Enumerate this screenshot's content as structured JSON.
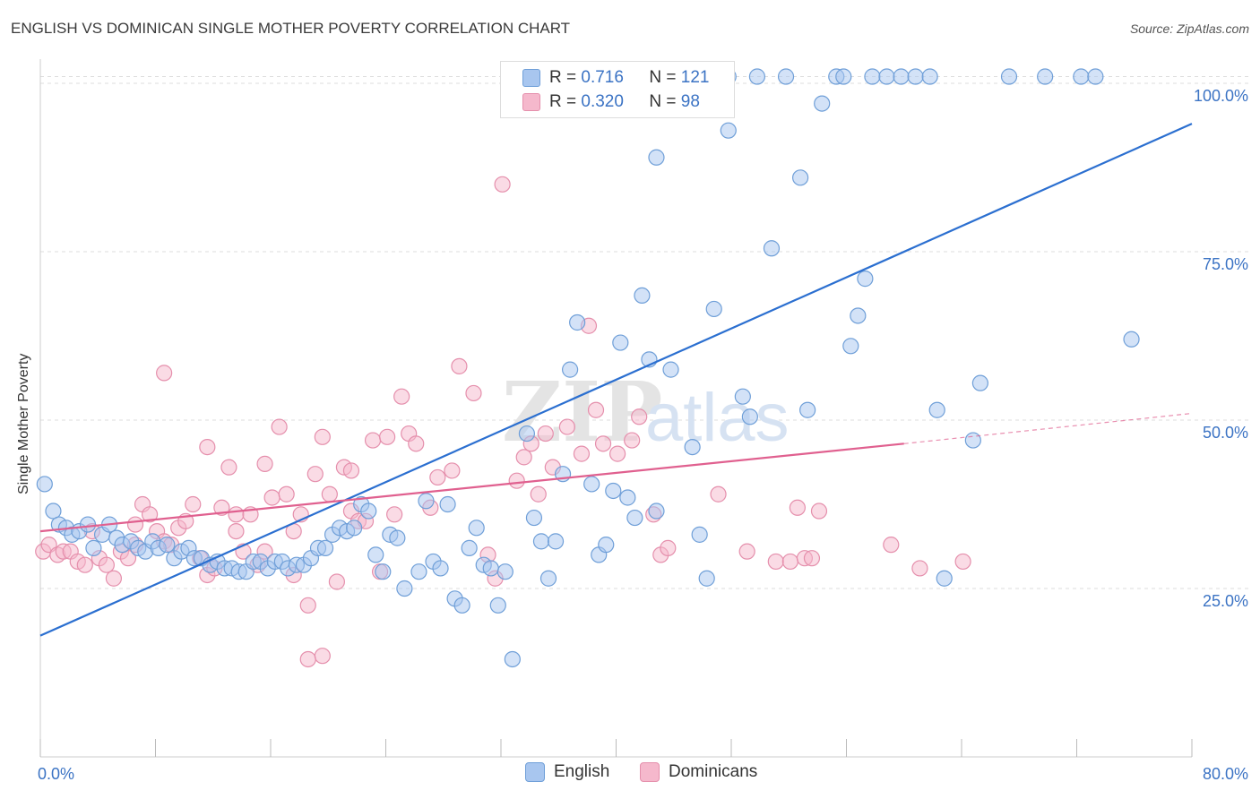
{
  "header": {
    "title": "ENGLISH VS DOMINICAN SINGLE MOTHER POVERTY CORRELATION CHART",
    "source": "Source: ZipAtlas.com"
  },
  "legend_top": {
    "english": {
      "r_label": "R =",
      "r_value": "0.716",
      "n_label": "N =",
      "n_value": "121"
    },
    "dominicans": {
      "r_label": "R =",
      "r_value": "0.320",
      "n_label": "N =",
      "n_value": "98"
    }
  },
  "legend_bottom": {
    "english": "English",
    "dominicans": "Dominicans"
  },
  "colors": {
    "english_fill": "#a8c6ef",
    "english_stroke": "#6f9fd8",
    "english_line": "#2b6fd0",
    "dominicans_fill": "#f5b8cc",
    "dominicans_stroke": "#e58fac",
    "dominicans_line": "#e0608f",
    "grid": "#dddddd",
    "tick_text": "#3b73c4"
  },
  "chart_data": {
    "type": "scatter",
    "title": "ENGLISH VS DOMINICAN SINGLE MOTHER POVERTY CORRELATION CHART",
    "xlabel": "",
    "ylabel": "Single Mother Poverty",
    "xlim": [
      0,
      80
    ],
    "ylim": [
      0,
      102
    ],
    "x_tick_labels": [
      "0.0%",
      "80.0%"
    ],
    "y_ticks": [
      25,
      50,
      75,
      100
    ],
    "y_tick_labels": [
      "25.0%",
      "50.0%",
      "75.0%",
      "100.0%"
    ],
    "grid": true,
    "legend_position": "top-center and bottom",
    "series": [
      {
        "name": "English",
        "r": 0.716,
        "n": 121,
        "trend": {
          "x": [
            0,
            80
          ],
          "y": [
            18,
            94
          ]
        },
        "points": [
          [
            0.3,
            40.5
          ],
          [
            0.9,
            36.5
          ],
          [
            1.3,
            34.5
          ],
          [
            1.8,
            34.0
          ],
          [
            2.2,
            33.0
          ],
          [
            2.7,
            33.5
          ],
          [
            3.3,
            34.5
          ],
          [
            3.7,
            31.0
          ],
          [
            4.3,
            33.0
          ],
          [
            4.8,
            34.5
          ],
          [
            5.3,
            32.5
          ],
          [
            5.7,
            31.5
          ],
          [
            6.3,
            32.0
          ],
          [
            6.8,
            31.0
          ],
          [
            7.3,
            30.5
          ],
          [
            7.8,
            32.0
          ],
          [
            8.2,
            31.0
          ],
          [
            8.8,
            31.5
          ],
          [
            9.3,
            29.5
          ],
          [
            9.8,
            30.5
          ],
          [
            10.3,
            31.0
          ],
          [
            10.7,
            29.5
          ],
          [
            11.2,
            29.5
          ],
          [
            11.8,
            28.5
          ],
          [
            12.3,
            29.0
          ],
          [
            12.8,
            28.0
          ],
          [
            13.3,
            28.0
          ],
          [
            13.8,
            27.5
          ],
          [
            14.3,
            27.5
          ],
          [
            14.8,
            29.0
          ],
          [
            15.3,
            29.0
          ],
          [
            15.8,
            28.0
          ],
          [
            16.3,
            29.0
          ],
          [
            16.8,
            29.0
          ],
          [
            17.2,
            28.0
          ],
          [
            17.8,
            28.5
          ],
          [
            18.3,
            28.5
          ],
          [
            18.8,
            29.5
          ],
          [
            19.3,
            31.0
          ],
          [
            19.8,
            31.0
          ],
          [
            20.3,
            33.0
          ],
          [
            20.8,
            34.0
          ],
          [
            21.3,
            33.5
          ],
          [
            21.8,
            34.0
          ],
          [
            22.3,
            37.5
          ],
          [
            22.8,
            36.5
          ],
          [
            23.3,
            30.0
          ],
          [
            23.8,
            27.5
          ],
          [
            24.3,
            33.0
          ],
          [
            24.8,
            32.5
          ],
          [
            25.3,
            25.0
          ],
          [
            26.3,
            27.5
          ],
          [
            26.8,
            38.0
          ],
          [
            27.3,
            29.0
          ],
          [
            27.8,
            28.0
          ],
          [
            28.3,
            37.5
          ],
          [
            28.8,
            23.5
          ],
          [
            29.3,
            22.5
          ],
          [
            29.8,
            31.0
          ],
          [
            30.3,
            34.0
          ],
          [
            30.8,
            28.5
          ],
          [
            31.3,
            28.0
          ],
          [
            31.8,
            22.5
          ],
          [
            32.3,
            27.5
          ],
          [
            32.8,
            14.5
          ],
          [
            33.8,
            48.0
          ],
          [
            34.3,
            35.5
          ],
          [
            34.8,
            32.0
          ],
          [
            35.3,
            26.5
          ],
          [
            35.8,
            32.0
          ],
          [
            36.3,
            42.0
          ],
          [
            36.8,
            57.5
          ],
          [
            37.3,
            64.5
          ],
          [
            38.3,
            40.5
          ],
          [
            38.8,
            30.0
          ],
          [
            39.3,
            31.5
          ],
          [
            39.8,
            39.5
          ],
          [
            40.3,
            61.5
          ],
          [
            40.8,
            38.5
          ],
          [
            41.3,
            35.5
          ],
          [
            41.8,
            68.5
          ],
          [
            42.3,
            59.0
          ],
          [
            42.8,
            36.5
          ],
          [
            42.8,
            89.0
          ],
          [
            43.8,
            57.5
          ],
          [
            44.3,
            101.0
          ],
          [
            44.8,
            101.0
          ],
          [
            45.3,
            46.0
          ],
          [
            45.8,
            33.0
          ],
          [
            46.3,
            26.5
          ],
          [
            46.8,
            66.5
          ],
          [
            47.3,
            101.0
          ],
          [
            47.8,
            93.0
          ],
          [
            47.8,
            101.0
          ],
          [
            48.8,
            53.5
          ],
          [
            49.3,
            50.5
          ],
          [
            49.8,
            101.0
          ],
          [
            50.8,
            75.5
          ],
          [
            51.8,
            101.0
          ],
          [
            52.8,
            86.0
          ],
          [
            53.3,
            51.5
          ],
          [
            54.3,
            97.0
          ],
          [
            55.3,
            101.0
          ],
          [
            55.8,
            101.0
          ],
          [
            56.3,
            61.0
          ],
          [
            56.8,
            65.5
          ],
          [
            57.3,
            71.0
          ],
          [
            57.8,
            101.0
          ],
          [
            58.8,
            101.0
          ],
          [
            59.8,
            101.0
          ],
          [
            60.8,
            101.0
          ],
          [
            61.8,
            101.0
          ],
          [
            62.3,
            51.5
          ],
          [
            62.8,
            26.5
          ],
          [
            64.8,
            47.0
          ],
          [
            65.3,
            55.5
          ],
          [
            67.3,
            101.0
          ],
          [
            69.8,
            101.0
          ],
          [
            72.3,
            101.0
          ],
          [
            73.3,
            101.0
          ],
          [
            75.8,
            62.0
          ]
        ]
      },
      {
        "name": "Dominicans",
        "r": 0.32,
        "n": 98,
        "trend": {
          "x": [
            0,
            60
          ],
          "y": [
            33.5,
            46.5
          ]
        },
        "trend_dashed": {
          "x": [
            60,
            80
          ],
          "y": [
            46.5,
            51
          ]
        },
        "points": [
          [
            0.2,
            30.5
          ],
          [
            0.6,
            31.5
          ],
          [
            1.2,
            30.0
          ],
          [
            1.6,
            30.5
          ],
          [
            2.1,
            30.5
          ],
          [
            2.6,
            29.0
          ],
          [
            3.1,
            28.5
          ],
          [
            3.6,
            33.5
          ],
          [
            4.1,
            29.5
          ],
          [
            4.6,
            28.5
          ],
          [
            5.1,
            26.5
          ],
          [
            5.6,
            30.5
          ],
          [
            6.1,
            29.5
          ],
          [
            6.6,
            31.5
          ],
          [
            6.6,
            34.5
          ],
          [
            7.1,
            37.5
          ],
          [
            7.6,
            36.0
          ],
          [
            8.1,
            33.5
          ],
          [
            8.6,
            32.0
          ],
          [
            8.6,
            57.0
          ],
          [
            9.1,
            31.5
          ],
          [
            9.6,
            34.0
          ],
          [
            10.1,
            35.0
          ],
          [
            10.6,
            37.5
          ],
          [
            11.1,
            29.5
          ],
          [
            11.6,
            27.0
          ],
          [
            11.6,
            46.0
          ],
          [
            12.1,
            28.0
          ],
          [
            12.6,
            37.0
          ],
          [
            13.1,
            43.0
          ],
          [
            13.6,
            36.0
          ],
          [
            13.6,
            33.5
          ],
          [
            14.1,
            30.5
          ],
          [
            14.6,
            36.0
          ],
          [
            15.1,
            28.5
          ],
          [
            15.6,
            43.5
          ],
          [
            15.6,
            30.5
          ],
          [
            16.1,
            38.5
          ],
          [
            16.6,
            49.0
          ],
          [
            17.1,
            39.0
          ],
          [
            17.6,
            33.5
          ],
          [
            17.6,
            27.0
          ],
          [
            18.1,
            36.0
          ],
          [
            18.6,
            22.5
          ],
          [
            18.6,
            14.5
          ],
          [
            19.1,
            42.0
          ],
          [
            19.6,
            15.0
          ],
          [
            19.6,
            47.5
          ],
          [
            20.1,
            39.0
          ],
          [
            20.6,
            26.0
          ],
          [
            21.1,
            43.0
          ],
          [
            21.6,
            42.5
          ],
          [
            21.6,
            36.5
          ],
          [
            22.1,
            35.0
          ],
          [
            22.6,
            35.0
          ],
          [
            23.1,
            47.0
          ],
          [
            23.6,
            27.5
          ],
          [
            24.1,
            47.5
          ],
          [
            24.6,
            36.0
          ],
          [
            25.1,
            53.5
          ],
          [
            25.6,
            48.0
          ],
          [
            26.1,
            46.5
          ],
          [
            27.1,
            37.0
          ],
          [
            27.6,
            41.5
          ],
          [
            28.6,
            42.5
          ],
          [
            29.1,
            58.0
          ],
          [
            30.1,
            54.0
          ],
          [
            31.1,
            30.0
          ],
          [
            31.6,
            26.5
          ],
          [
            32.1,
            85.0
          ],
          [
            33.1,
            41.0
          ],
          [
            33.6,
            44.5
          ],
          [
            34.1,
            46.5
          ],
          [
            34.6,
            39.0
          ],
          [
            35.1,
            48.0
          ],
          [
            35.6,
            43.0
          ],
          [
            36.6,
            49.0
          ],
          [
            37.6,
            45.0
          ],
          [
            38.1,
            64.0
          ],
          [
            38.6,
            51.5
          ],
          [
            39.1,
            46.5
          ],
          [
            40.1,
            45.0
          ],
          [
            41.1,
            47.0
          ],
          [
            41.6,
            50.5
          ],
          [
            42.6,
            36.0
          ],
          [
            43.1,
            30.0
          ],
          [
            43.6,
            31.0
          ],
          [
            47.1,
            39.0
          ],
          [
            49.1,
            30.5
          ],
          [
            51.1,
            29.0
          ],
          [
            52.1,
            29.0
          ],
          [
            52.6,
            37.0
          ],
          [
            53.1,
            29.5
          ],
          [
            53.6,
            29.5
          ],
          [
            54.1,
            36.5
          ],
          [
            59.1,
            31.5
          ],
          [
            61.1,
            28.0
          ],
          [
            64.1,
            29.0
          ]
        ]
      }
    ]
  }
}
